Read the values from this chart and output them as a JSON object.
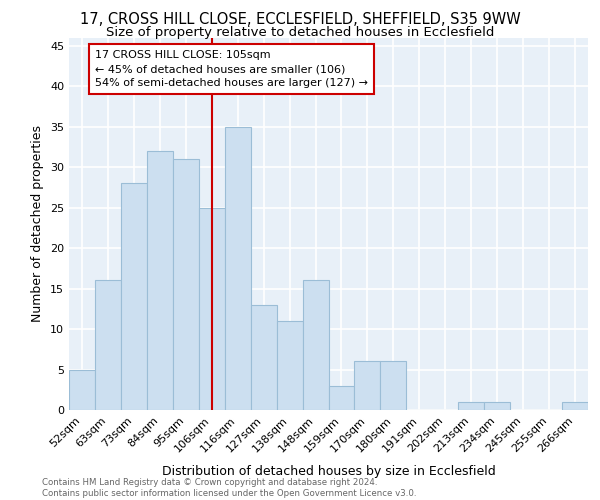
{
  "title_line1": "17, CROSS HILL CLOSE, ECCLESFIELD, SHEFFIELD, S35 9WW",
  "title_line2": "Size of property relative to detached houses in Ecclesfield",
  "xlabel": "Distribution of detached houses by size in Ecclesfield",
  "ylabel": "Number of detached properties",
  "categories": [
    "52sqm",
    "63sqm",
    "73sqm",
    "84sqm",
    "95sqm",
    "106sqm",
    "116sqm",
    "127sqm",
    "138sqm",
    "148sqm",
    "159sqm",
    "170sqm",
    "180sqm",
    "191sqm",
    "202sqm",
    "213sqm",
    "234sqm",
    "245sqm",
    "255sqm",
    "266sqm"
  ],
  "values": [
    5,
    16,
    28,
    32,
    31,
    25,
    35,
    13,
    11,
    16,
    3,
    6,
    6,
    0,
    0,
    1,
    1,
    0,
    0,
    1
  ],
  "bar_color": "#ccdff0",
  "bar_edge_color": "#9bbdd6",
  "vline_x": 5,
  "vline_color": "#cc0000",
  "annotation_text_line1": "17 CROSS HILL CLOSE: 105sqm",
  "annotation_text_line2": "← 45% of detached houses are smaller (106)",
  "annotation_text_line3": "54% of semi-detached houses are larger (127) →",
  "ylim": [
    0,
    46
  ],
  "yticks": [
    0,
    5,
    10,
    15,
    20,
    25,
    30,
    35,
    40,
    45
  ],
  "footer_text": "Contains HM Land Registry data © Crown copyright and database right 2024.\nContains public sector information licensed under the Open Government Licence v3.0.",
  "bg_color": "#e8f0f8",
  "grid_color": "#ffffff",
  "title_fontsize": 10.5,
  "subtitle_fontsize": 9.5,
  "label_fontsize": 9,
  "tick_fontsize": 8,
  "ann_fontsize": 8
}
